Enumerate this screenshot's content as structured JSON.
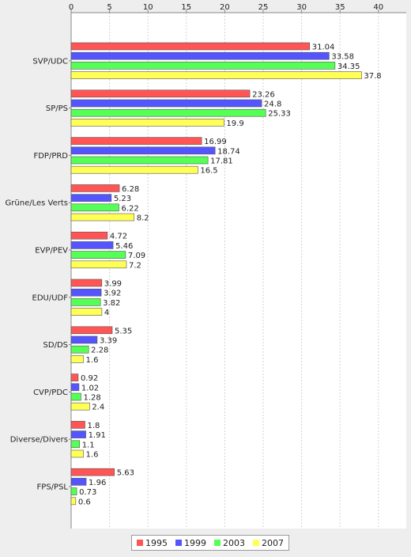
{
  "chart_data": {
    "type": "bar",
    "orientation": "horizontal",
    "title": "",
    "xlabel": "",
    "ylabel": "",
    "xlim": [
      0,
      44
    ],
    "x_ticks": [
      0,
      5,
      10,
      15,
      20,
      25,
      30,
      35,
      40
    ],
    "grid": true,
    "legend_position": "bottom",
    "categories": [
      "SVP/UDC",
      "SP/PS",
      "FDP/PRD",
      "Grüne/Les Verts",
      "EVP/PEV",
      "EDU/UDF",
      "SD/DS",
      "CVP/PDC",
      "Diverse/Divers",
      "FPS/PSL"
    ],
    "series": [
      {
        "name": "1995",
        "color": "#ff5555",
        "values": [
          31.04,
          23.26,
          16.99,
          6.28,
          4.72,
          3.99,
          5.35,
          0.92,
          1.8,
          5.63
        ]
      },
      {
        "name": "1999",
        "color": "#5555ff",
        "values": [
          33.58,
          24.8,
          18.74,
          5.23,
          5.46,
          3.92,
          3.39,
          1.02,
          1.91,
          1.96
        ]
      },
      {
        "name": "2003",
        "color": "#55ff55",
        "values": [
          34.35,
          25.33,
          17.81,
          6.22,
          7.09,
          3.82,
          2.28,
          1.28,
          1.1,
          0.73
        ]
      },
      {
        "name": "2007",
        "color": "#ffff55",
        "values": [
          37.8,
          19.9,
          16.5,
          8.2,
          7.2,
          4,
          1.6,
          2.4,
          1.6,
          0.6
        ]
      }
    ],
    "data_labels": [
      [
        "31.04",
        "23.26",
        "16.99",
        "6.28",
        "4.72",
        "3.99",
        "5.35",
        "0.92",
        "1.8",
        "5.63"
      ],
      [
        "33.58",
        "24.8",
        "18.74",
        "5.23",
        "5.46",
        "3.92",
        "3.39",
        "1.02",
        "1.91",
        "1.96"
      ],
      [
        "34.35",
        "25.33",
        "17.81",
        "6.22",
        "7.09",
        "3.82",
        "2.28",
        "1.28",
        "1.1",
        "0.73"
      ],
      [
        "37.8",
        "19.9",
        "16.5",
        "8.2",
        "7.2",
        "4",
        "1.6",
        "2.4",
        "1.6",
        "0.6"
      ]
    ]
  }
}
